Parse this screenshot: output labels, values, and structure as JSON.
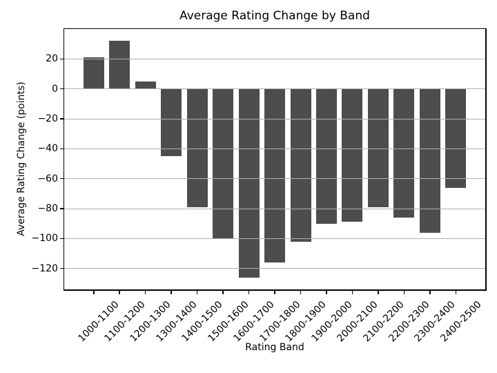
{
  "chart_data": {
    "type": "bar",
    "title": "Average Rating Change by Band",
    "xlabel": "Rating Band",
    "ylabel": "Average Rating Change (points)",
    "categories": [
      "1000-1100",
      "1100-1200",
      "1200-1300",
      "1300-1400",
      "1400-1500",
      "1500-1600",
      "1600-1700",
      "1700-1800",
      "1800-1900",
      "1900-2000",
      "2000-2100",
      "2100-2200",
      "2200-2300",
      "2300-2400",
      "2400-2500"
    ],
    "values": [
      21,
      32,
      5,
      -45,
      -79,
      -100,
      -126,
      -116,
      -102,
      -90,
      -89,
      -79,
      -86,
      -96,
      -66
    ],
    "ylim": [
      -134,
      40
    ],
    "xlim": [
      -1.14,
      15.14
    ],
    "bar_width": 0.8,
    "yticks": [
      20,
      0,
      -20,
      -40,
      -60,
      -80,
      -100,
      -120
    ],
    "ytick_labels": [
      "20",
      "0",
      "−20",
      "−40",
      "−60",
      "−80",
      "−100",
      "−120"
    ],
    "grid": true,
    "grid_axis": "y",
    "grid_above_bars": true,
    "legend": "none",
    "bar_color": "#4d4d4d",
    "grid_color": "#b0b0b0",
    "spine_color": "#000000",
    "background_color": "#ffffff"
  }
}
